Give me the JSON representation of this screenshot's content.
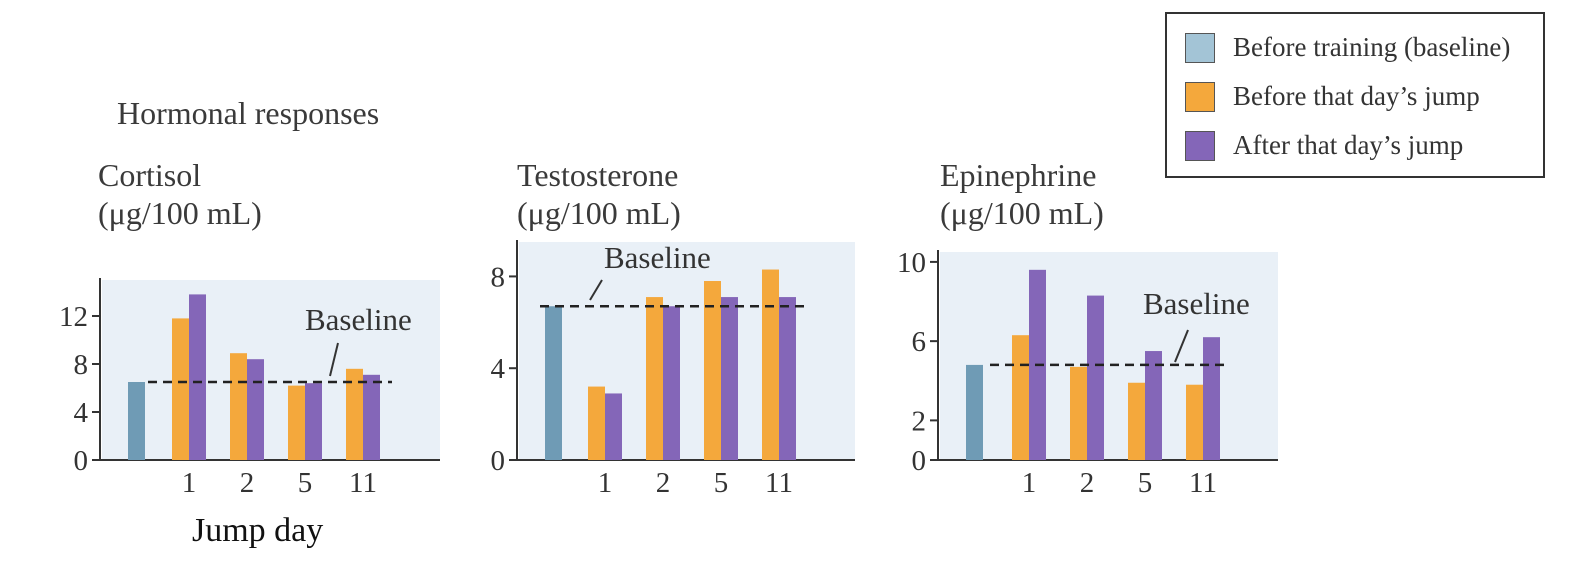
{
  "colors": {
    "baseline": "#6f9bb5",
    "before": "#f4a83c",
    "after": "#8466b8",
    "panel_bg": "#e9f0f7",
    "baseline_line": "#222222"
  },
  "figure": {
    "title": "Hormonal responses",
    "xlabel": "Jump day"
  },
  "legend": {
    "items": [
      {
        "label": "Before training (baseline)",
        "color": "#a3c4d6"
      },
      {
        "label": "Before that day’s jump",
        "color": "#f4a83c"
      },
      {
        "label": "After that day’s jump",
        "color": "#8466b8"
      }
    ]
  },
  "chart_data": [
    {
      "type": "bar",
      "title": "Cortisol",
      "unit": "(μg/100 mL)",
      "categories": [
        "1",
        "2",
        "5",
        "11"
      ],
      "baseline_value": 6.5,
      "baseline_label": "Baseline",
      "series": [
        {
          "name": "Before that day’s jump",
          "values": [
            11.8,
            8.9,
            6.2,
            7.6
          ]
        },
        {
          "name": "After that day’s jump",
          "values": [
            13.8,
            8.4,
            6.4,
            7.1
          ]
        }
      ],
      "ylim": [
        0,
        15
      ],
      "yticks": [
        0,
        4,
        8,
        12
      ]
    },
    {
      "type": "bar",
      "title": "Testosterone",
      "unit": "(μg/100 mL)",
      "categories": [
        "1",
        "2",
        "5",
        "11"
      ],
      "baseline_value": 6.7,
      "baseline_label": "Baseline",
      "series": [
        {
          "name": "Before that day’s jump",
          "values": [
            3.2,
            7.1,
            7.8,
            8.3
          ]
        },
        {
          "name": "After that day’s jump",
          "values": [
            2.9,
            6.7,
            7.1,
            7.1
          ]
        }
      ],
      "ylim": [
        0,
        9.5
      ],
      "yticks": [
        0,
        4,
        8
      ]
    },
    {
      "type": "bar",
      "title": "Epinephrine",
      "unit": "(μg/100 mL)",
      "categories": [
        "1",
        "2",
        "5",
        "11"
      ],
      "baseline_value": 4.8,
      "baseline_label": "Baseline",
      "series": [
        {
          "name": "Before that day’s jump",
          "values": [
            6.3,
            4.7,
            3.9,
            3.8
          ]
        },
        {
          "name": "After that day’s jump",
          "values": [
            9.6,
            8.3,
            5.5,
            6.2
          ]
        }
      ],
      "ylim": [
        0,
        10.5
      ],
      "yticks": [
        0,
        2,
        6,
        10
      ]
    }
  ]
}
